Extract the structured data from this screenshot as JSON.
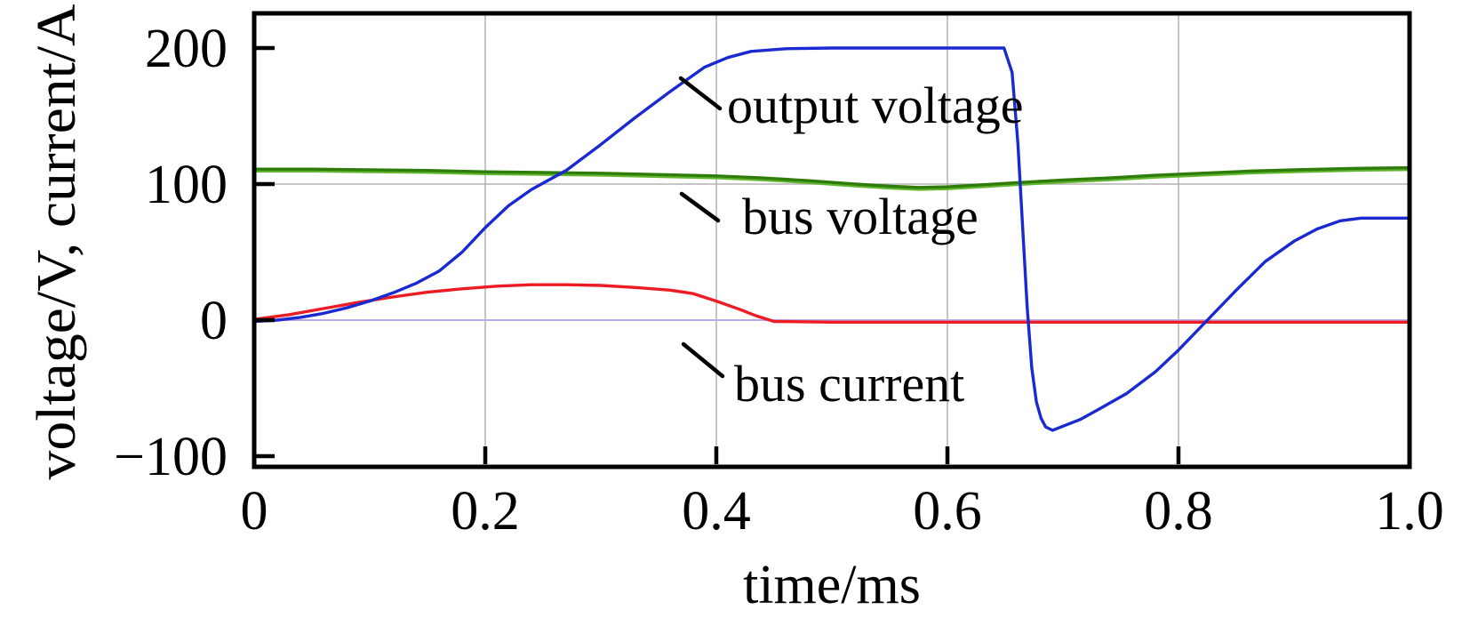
{
  "figure": {
    "y_axis_label": "voltage/V, current/A",
    "x_axis_label": "time/ms",
    "y_tick_labels": [
      "200",
      "100",
      "0",
      "−100"
    ],
    "x_tick_labels": [
      "0",
      "0.2",
      "0.4",
      "0.6",
      "0.8",
      "1.0"
    ]
  },
  "colors": {
    "frame": "#000000",
    "grid": "#b3b3b3",
    "zero_line": "#bfa8e6",
    "output_voltage": "#1a2ad0",
    "bus_voltage": "#2e7d0a",
    "bus_voltage_edge": "#62b62f",
    "bus_current": "#ed1c24",
    "text": "#000000"
  },
  "chart_data": {
    "type": "line",
    "title": "",
    "xlabel": "time/ms",
    "ylabel": "voltage/V, current/A",
    "xlim": [
      0,
      1.0
    ],
    "ylim": [
      -107,
      225
    ],
    "x_tick_values": [
      0,
      0.2,
      0.4,
      0.6,
      0.8,
      1.0
    ],
    "y_tick_values": [
      -100,
      0,
      100,
      200
    ],
    "grid": true,
    "legend_position": "in-plot text labels with leader lines",
    "series": [
      {
        "name": "bus current",
        "color": "#ed1c24",
        "points": [
          [
            0,
            0.5
          ],
          [
            0.03,
            4
          ],
          [
            0.06,
            8.5
          ],
          [
            0.09,
            13
          ],
          [
            0.12,
            17
          ],
          [
            0.15,
            20.5
          ],
          [
            0.18,
            23
          ],
          [
            0.21,
            25
          ],
          [
            0.24,
            26
          ],
          [
            0.27,
            26
          ],
          [
            0.3,
            25.5
          ],
          [
            0.33,
            24
          ],
          [
            0.36,
            22
          ],
          [
            0.38,
            19.5
          ],
          [
            0.4,
            14
          ],
          [
            0.42,
            8
          ],
          [
            0.435,
            3
          ],
          [
            0.45,
            -1
          ],
          [
            0.5,
            -1.5
          ],
          [
            0.6,
            -1.5
          ],
          [
            0.7,
            -1.5
          ],
          [
            0.8,
            -1.5
          ],
          [
            0.9,
            -1.5
          ],
          [
            1.0,
            -1.5
          ]
        ]
      },
      {
        "name": "bus voltage",
        "color": "#2e7d0a",
        "edge_color": "#62b62f",
        "points": [
          [
            0,
            111
          ],
          [
            0.05,
            111
          ],
          [
            0.1,
            110.5
          ],
          [
            0.15,
            110
          ],
          [
            0.2,
            109
          ],
          [
            0.25,
            108.5
          ],
          [
            0.3,
            108
          ],
          [
            0.35,
            107
          ],
          [
            0.4,
            106
          ],
          [
            0.44,
            104.5
          ],
          [
            0.48,
            102.5
          ],
          [
            0.52,
            100
          ],
          [
            0.55,
            98.5
          ],
          [
            0.575,
            97.5
          ],
          [
            0.6,
            98
          ],
          [
            0.63,
            99.5
          ],
          [
            0.66,
            101
          ],
          [
            0.7,
            103
          ],
          [
            0.74,
            104.5
          ],
          [
            0.78,
            106.5
          ],
          [
            0.82,
            108
          ],
          [
            0.86,
            109.5
          ],
          [
            0.9,
            110.5
          ],
          [
            0.95,
            111.5
          ],
          [
            1.0,
            112
          ]
        ]
      },
      {
        "name": "output voltage",
        "color": "#1a2ad0",
        "points": [
          [
            0,
            -1
          ],
          [
            0.02,
            0
          ],
          [
            0.04,
            2
          ],
          [
            0.06,
            5
          ],
          [
            0.08,
            9
          ],
          [
            0.1,
            14
          ],
          [
            0.12,
            20
          ],
          [
            0.14,
            27
          ],
          [
            0.16,
            36
          ],
          [
            0.18,
            50
          ],
          [
            0.2,
            68
          ],
          [
            0.22,
            84
          ],
          [
            0.24,
            96
          ],
          [
            0.27,
            110
          ],
          [
            0.3,
            129
          ],
          [
            0.33,
            149
          ],
          [
            0.36,
            168
          ],
          [
            0.39,
            186
          ],
          [
            0.41,
            193
          ],
          [
            0.43,
            197.5
          ],
          [
            0.46,
            199.5
          ],
          [
            0.5,
            200
          ],
          [
            0.55,
            200
          ],
          [
            0.6,
            200
          ],
          [
            0.649,
            200
          ],
          [
            0.656,
            182
          ],
          [
            0.661,
            130
          ],
          [
            0.665,
            70
          ],
          [
            0.669,
            10
          ],
          [
            0.673,
            -35
          ],
          [
            0.677,
            -60
          ],
          [
            0.681,
            -72
          ],
          [
            0.685,
            -78.5
          ],
          [
            0.691,
            -81
          ],
          [
            0.7,
            -78
          ],
          [
            0.715,
            -73
          ],
          [
            0.73,
            -66
          ],
          [
            0.755,
            -54
          ],
          [
            0.78,
            -38
          ],
          [
            0.8,
            -22
          ],
          [
            0.825,
            0
          ],
          [
            0.85,
            22
          ],
          [
            0.875,
            43
          ],
          [
            0.9,
            58
          ],
          [
            0.92,
            67
          ],
          [
            0.94,
            73
          ],
          [
            0.958,
            75
          ],
          [
            1.0,
            75
          ]
        ]
      }
    ]
  }
}
